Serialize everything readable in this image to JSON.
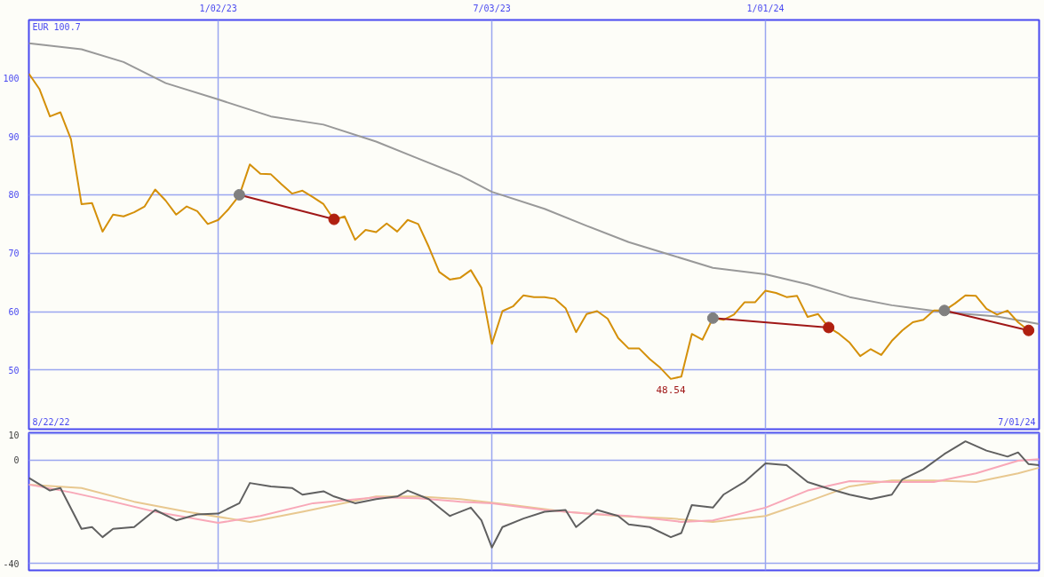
{
  "chart_data": [
    {
      "type": "line",
      "xlim": [
        "2022-08-29",
        "2024-07-01"
      ],
      "ylim": [
        39.9,
        109.9
      ],
      "yticks": [
        50,
        60,
        70,
        80,
        90,
        100
      ],
      "xticks": [
        {
          "value": "2023-01-02",
          "label": "1/02/23"
        },
        {
          "value": "2023-07-03",
          "label": "7/03/23"
        },
        {
          "value": "2024-01-01",
          "label": "1/01/24"
        }
      ],
      "grid": true,
      "annotations": [
        "EUR 100.7",
        "8/22/22",
        "7/01/24",
        {
          "text": "48.54",
          "x": "2023-10-30",
          "y": 48.54
        }
      ],
      "series": [
        {
          "color": "#999999",
          "x": [
            "2022-08-29",
            "2022-10-03",
            "2022-10-31",
            "2022-11-28",
            "2023-01-02",
            "2023-02-06",
            "2023-03-13",
            "2023-04-17",
            "2023-05-15",
            "2023-06-12",
            "2023-07-03",
            "2023-08-07",
            "2023-09-04",
            "2023-10-02",
            "2023-10-30",
            "2023-11-27",
            "2024-01-01",
            "2024-01-29",
            "2024-02-26",
            "2024-03-25",
            "2024-04-29",
            "2024-06-03",
            "2024-07-01"
          ],
          "values": [
            105.9,
            104.9,
            102.7,
            99.1,
            96.3,
            93.4,
            92.0,
            89.1,
            86.2,
            83.3,
            80.5,
            77.6,
            74.7,
            71.9,
            69.7,
            67.5,
            66.4,
            64.7,
            62.5,
            61.1,
            59.9,
            59.2,
            57.9
          ]
        },
        {
          "color": "#d4900a",
          "x": [
            "2022-08-29",
            "2022-09-05",
            "2022-09-12",
            "2022-09-19",
            "2022-09-26",
            "2022-10-03",
            "2022-10-10",
            "2022-10-17",
            "2022-10-24",
            "2022-10-31",
            "2022-11-07",
            "2022-11-14",
            "2022-11-21",
            "2022-11-28",
            "2022-12-05",
            "2022-12-12",
            "2022-12-19",
            "2022-12-26",
            "2023-01-02",
            "2023-01-09",
            "2023-01-16",
            "2023-01-23",
            "2023-01-30",
            "2023-02-06",
            "2023-02-13",
            "2023-02-20",
            "2023-02-27",
            "2023-03-06",
            "2023-03-13",
            "2023-03-20",
            "2023-03-27",
            "2023-04-03",
            "2023-04-10",
            "2023-04-17",
            "2023-04-24",
            "2023-05-01",
            "2023-05-08",
            "2023-05-15",
            "2023-05-22",
            "2023-05-29",
            "2023-06-05",
            "2023-06-12",
            "2023-06-19",
            "2023-06-26",
            "2023-07-03",
            "2023-07-10",
            "2023-07-17",
            "2023-07-24",
            "2023-07-31",
            "2023-08-07",
            "2023-08-14",
            "2023-08-21",
            "2023-08-28",
            "2023-09-04",
            "2023-09-11",
            "2023-09-18",
            "2023-09-25",
            "2023-10-02",
            "2023-10-09",
            "2023-10-16",
            "2023-10-23",
            "2023-10-30",
            "2023-11-06",
            "2023-11-13",
            "2023-11-20",
            "2023-11-27",
            "2023-12-04",
            "2023-12-11",
            "2023-12-18",
            "2023-12-25",
            "2024-01-01",
            "2024-01-08",
            "2024-01-15",
            "2024-01-22",
            "2024-01-29",
            "2024-02-05",
            "2024-02-12",
            "2024-02-19",
            "2024-02-26",
            "2024-03-04",
            "2024-03-11",
            "2024-03-18",
            "2024-03-25",
            "2024-04-01",
            "2024-04-08",
            "2024-04-15",
            "2024-04-22",
            "2024-04-29",
            "2024-05-06",
            "2024-05-13",
            "2024-05-20",
            "2024-05-27",
            "2024-06-03",
            "2024-06-10",
            "2024-06-17",
            "2024-06-24"
          ],
          "values": [
            100.7,
            98.1,
            93.4,
            94.1,
            89.5,
            78.4,
            78.6,
            73.7,
            76.6,
            76.3,
            77.0,
            78.0,
            80.9,
            79.0,
            76.6,
            78.0,
            77.2,
            75.0,
            75.7,
            77.6,
            79.9,
            85.2,
            83.6,
            83.5,
            81.8,
            80.2,
            80.7,
            79.6,
            78.4,
            75.7,
            76.3,
            72.3,
            74.0,
            73.6,
            75.1,
            73.7,
            75.7,
            75.0,
            71.1,
            66.8,
            65.5,
            65.8,
            67.1,
            64.1,
            54.5,
            60.1,
            60.9,
            62.8,
            62.5,
            62.5,
            62.2,
            60.6,
            56.5,
            59.6,
            60.1,
            58.8,
            55.5,
            53.7,
            53.7,
            51.9,
            50.4,
            48.5,
            48.9,
            56.2,
            55.2,
            58.9,
            58.6,
            59.5,
            61.6,
            61.6,
            63.6,
            63.2,
            62.5,
            62.7,
            59.1,
            59.6,
            57.3,
            56.2,
            54.7,
            52.4,
            53.6,
            52.6,
            55.0,
            56.8,
            58.2,
            58.6,
            60.2,
            60.2,
            61.4,
            62.8,
            62.7,
            60.5,
            59.5,
            60.2,
            58.2,
            56.8
          ]
        },
        {
          "color": "#a01818",
          "marker": "circle",
          "colors": [
            "#808080",
            "#b02010"
          ],
          "x": [
            "2023-01-16",
            "2023-03-20"
          ],
          "values": [
            80.0,
            75.8
          ]
        },
        {
          "color": "#a01818",
          "marker": "circle",
          "colors": [
            "#808080",
            "#b02010"
          ],
          "x": [
            "2023-11-27",
            "2024-02-12"
          ],
          "values": [
            58.9,
            57.3
          ]
        },
        {
          "color": "#a01818",
          "marker": "circle",
          "colors": [
            "#808080",
            "#b02010"
          ],
          "x": [
            "2024-04-29",
            "2024-06-24"
          ],
          "values": [
            60.2,
            56.8
          ]
        }
      ]
    },
    {
      "type": "line",
      "xlim": [
        "2022-08-29",
        "2024-07-01"
      ],
      "ylim": [
        -42.6,
        10.5
      ],
      "yticks": [
        -40,
        0,
        10
      ],
      "xticks": [
        {
          "value": "2023-01-02",
          "label": null
        },
        {
          "value": "2023-07-03",
          "label": null
        },
        {
          "value": "2024-01-01",
          "label": null
        }
      ],
      "tick_labels": "y",
      "grid": true,
      "series": [
        {
          "color": "#e8c890",
          "x": [
            "2022-08-29",
            "2022-10-03",
            "2022-11-07",
            "2022-12-12",
            "2023-01-23",
            "2023-02-27",
            "2023-04-17",
            "2023-05-15",
            "2023-06-12",
            "2023-07-17",
            "2023-08-21",
            "2023-09-25",
            "2023-10-30",
            "2023-11-27",
            "2024-01-01",
            "2024-01-29",
            "2024-02-26",
            "2024-03-25",
            "2024-04-22",
            "2024-05-20",
            "2024-06-17",
            "2024-07-01"
          ],
          "values": [
            -9.5,
            -10.8,
            -16.1,
            -20.0,
            -23.9,
            -20.0,
            -14.1,
            -14.1,
            -15.1,
            -17.4,
            -20.0,
            -21.6,
            -22.6,
            -23.9,
            -21.6,
            -16.1,
            -10.2,
            -7.9,
            -7.9,
            -8.5,
            -5.2,
            -3.0
          ]
        },
        {
          "color": "#f8a8b8",
          "x": [
            "2022-08-29",
            "2022-09-26",
            "2022-10-24",
            "2022-11-21",
            "2023-01-02",
            "2023-01-30",
            "2023-03-06",
            "2023-04-17",
            "2023-05-15",
            "2023-06-12",
            "2023-07-03",
            "2023-08-07",
            "2023-09-04",
            "2023-10-02",
            "2023-11-06",
            "2023-11-27",
            "2024-01-01",
            "2024-01-29",
            "2024-02-26",
            "2024-03-25",
            "2024-04-22",
            "2024-05-20",
            "2024-06-17",
            "2024-07-01"
          ],
          "values": [
            -9.5,
            -12.5,
            -16.1,
            -20.0,
            -24.3,
            -21.6,
            -16.7,
            -14.4,
            -14.8,
            -16.1,
            -16.7,
            -19.3,
            -20.7,
            -21.6,
            -23.9,
            -23.3,
            -18.4,
            -11.8,
            -8.2,
            -8.5,
            -8.5,
            -5.2,
            -0.3,
            0.3
          ]
        },
        {
          "color": "#606060",
          "x": [
            "2022-08-29",
            "2022-09-12",
            "2022-09-19",
            "2022-10-03",
            "2022-10-10",
            "2022-10-17",
            "2022-10-24",
            "2022-11-07",
            "2022-11-21",
            "2022-12-05",
            "2022-12-19",
            "2023-01-02",
            "2023-01-16",
            "2023-01-23",
            "2023-02-06",
            "2023-02-20",
            "2023-02-27",
            "2023-03-13",
            "2023-03-20",
            "2023-04-03",
            "2023-04-17",
            "2023-05-01",
            "2023-05-08",
            "2023-05-22",
            "2023-06-05",
            "2023-06-19",
            "2023-06-26",
            "2023-07-03",
            "2023-07-10",
            "2023-07-24",
            "2023-08-07",
            "2023-08-21",
            "2023-08-28",
            "2023-09-11",
            "2023-09-25",
            "2023-10-02",
            "2023-10-16",
            "2023-10-30",
            "2023-11-06",
            "2023-11-13",
            "2023-11-27",
            "2023-12-04",
            "2023-12-18",
            "2024-01-01",
            "2024-01-15",
            "2024-01-29",
            "2024-02-12",
            "2024-02-26",
            "2024-03-11",
            "2024-03-25",
            "2024-04-01",
            "2024-04-15",
            "2024-04-29",
            "2024-05-13",
            "2024-05-27",
            "2024-06-10",
            "2024-06-17",
            "2024-06-24",
            "2024-07-01"
          ],
          "values": [
            -6.9,
            -11.8,
            -10.8,
            -26.6,
            -25.9,
            -29.8,
            -26.6,
            -25.9,
            -19.3,
            -23.3,
            -21.0,
            -20.7,
            -16.7,
            -8.9,
            -10.2,
            -10.8,
            -13.4,
            -12.1,
            -14.1,
            -16.7,
            -15.1,
            -14.1,
            -11.8,
            -15.1,
            -21.6,
            -18.4,
            -23.3,
            -33.8,
            -25.9,
            -22.6,
            -20.0,
            -19.3,
            -25.9,
            -19.3,
            -21.6,
            -24.9,
            -25.9,
            -29.8,
            -28.2,
            -17.4,
            -18.4,
            -13.4,
            -8.5,
            -1.3,
            -2.0,
            -8.5,
            -11.1,
            -13.4,
            -15.1,
            -13.4,
            -7.5,
            -3.6,
            2.3,
            7.2,
            3.6,
            1.3,
            2.9,
            -1.6,
            -2.0
          ]
        }
      ]
    }
  ]
}
